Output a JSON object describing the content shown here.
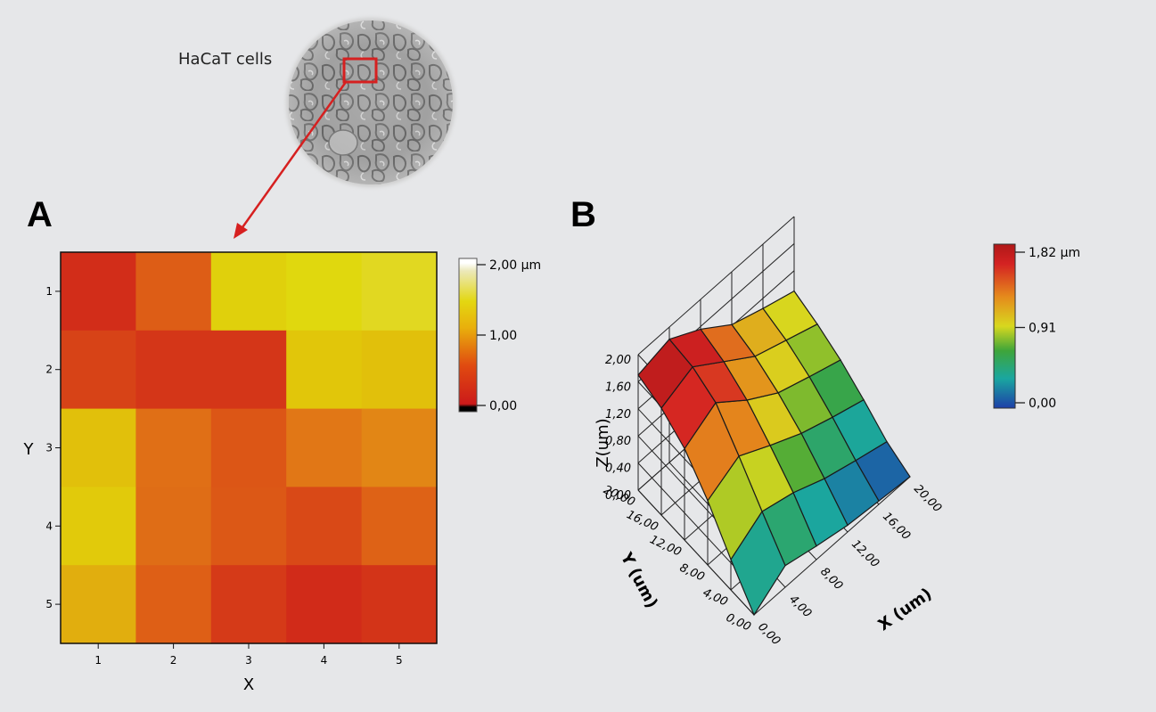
{
  "inset": {
    "label": "HaCaT cells"
  },
  "chart_data": [
    {
      "panel": "A",
      "type": "heatmap",
      "xlabel": "X",
      "ylabel": "Y",
      "x_ticks": [
        "1",
        "2",
        "3",
        "4",
        "5"
      ],
      "y_ticks": [
        "1",
        "2",
        "3",
        "4",
        "5"
      ],
      "units": "µm",
      "values": [
        [
          0.18,
          0.62,
          1.32,
          1.4,
          1.5
        ],
        [
          0.38,
          0.26,
          0.26,
          1.22,
          1.18
        ],
        [
          1.18,
          0.76,
          0.56,
          0.82,
          0.92
        ],
        [
          1.26,
          0.74,
          0.58,
          0.44,
          0.66
        ],
        [
          1.1,
          0.64,
          0.3,
          0.16,
          0.24
        ]
      ],
      "colorbar": {
        "min": 0.0,
        "max": 2.0,
        "ticks": [
          "0,00",
          "1,00",
          "2,00 µm"
        ]
      }
    },
    {
      "panel": "B",
      "type": "surface",
      "xlabel": "X (um)",
      "ylabel": "Y (um)",
      "zlabel": "Z(um)",
      "x_ticks": [
        "0,00",
        "4,00",
        "8,00",
        "12,00",
        "16,00",
        "20,00"
      ],
      "y_ticks": [
        "0,00",
        "4,00",
        "8,00",
        "12,00",
        "16,00",
        "20,00"
      ],
      "z_ticks": [
        "0,00",
        "0,40",
        "0,80",
        "1,20",
        "1,60",
        "2,00"
      ],
      "z": [
        [
          0.0,
          0.32,
          0.2,
          0.1,
          0.05,
          0.0
        ],
        [
          0.45,
          0.75,
          0.62,
          0.42,
          0.28,
          0.15
        ],
        [
          0.95,
          1.2,
          0.95,
          0.72,
          0.55,
          0.4
        ],
        [
          1.35,
          1.62,
          1.25,
          0.95,
          0.78,
          0.62
        ],
        [
          1.58,
          1.78,
          1.45,
          1.12,
          0.95,
          0.78
        ],
        [
          1.7,
          1.82,
          1.56,
          1.22,
          1.05,
          0.9
        ]
      ],
      "colorbar": {
        "min": 0.0,
        "max": 1.82,
        "ticks": [
          "0,00",
          "0,91",
          "1,82 µm"
        ]
      }
    }
  ]
}
